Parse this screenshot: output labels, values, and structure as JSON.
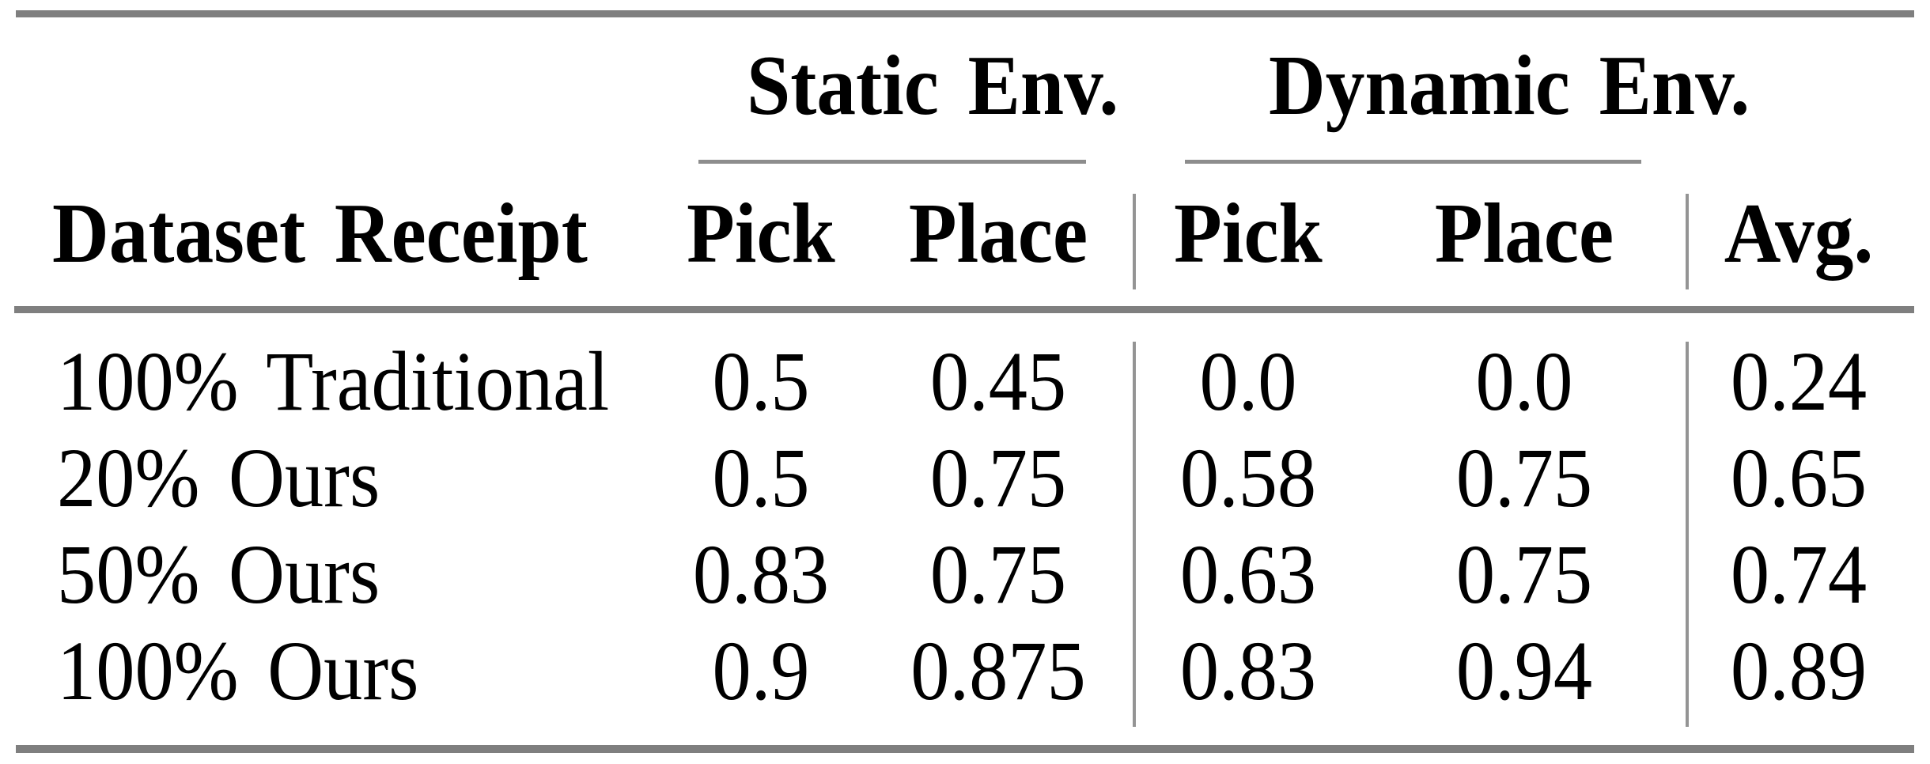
{
  "table": {
    "header": {
      "row_label": "Dataset Receipt",
      "groups": [
        {
          "label": "Static Env.",
          "sub": [
            "Pick",
            "Place"
          ]
        },
        {
          "label": "Dynamic Env.",
          "sub": [
            "Pick",
            "Place"
          ]
        }
      ],
      "avg": "Avg."
    },
    "rows": [
      {
        "label": "100% Traditional",
        "values": [
          "0.5",
          "0.45",
          "0.0",
          "0.0",
          "0.24"
        ]
      },
      {
        "label": "20% Ours",
        "values": [
          "0.5",
          "0.75",
          "0.58",
          "0.75",
          "0.65"
        ]
      },
      {
        "label": "50% Ours",
        "values": [
          "0.83",
          "0.75",
          "0.63",
          "0.75",
          "0.74"
        ]
      },
      {
        "label": "100% Ours",
        "values": [
          "0.9",
          "0.875",
          "0.83",
          "0.94",
          "0.89"
        ]
      }
    ],
    "colors": {
      "heavy_rule": "#7f7f7f",
      "cmidrule": "#8d8d8d",
      "vertical_divider": "#949494",
      "text": "#000000",
      "background": "#ffffff"
    }
  },
  "chart_data": {
    "type": "table",
    "title": "",
    "columns": [
      "Dataset Receipt",
      "Static Env. Pick",
      "Static Env. Place",
      "Dynamic Env. Pick",
      "Dynamic Env. Place",
      "Avg."
    ],
    "rows": [
      [
        "100% Traditional",
        0.5,
        0.45,
        0.0,
        0.0,
        0.24
      ],
      [
        "20% Ours",
        0.5,
        0.75,
        0.58,
        0.75,
        0.65
      ],
      [
        "50% Ours",
        0.83,
        0.75,
        0.63,
        0.75,
        0.74
      ],
      [
        "100% Ours",
        0.9,
        0.875,
        0.83,
        0.94,
        0.89
      ]
    ]
  }
}
